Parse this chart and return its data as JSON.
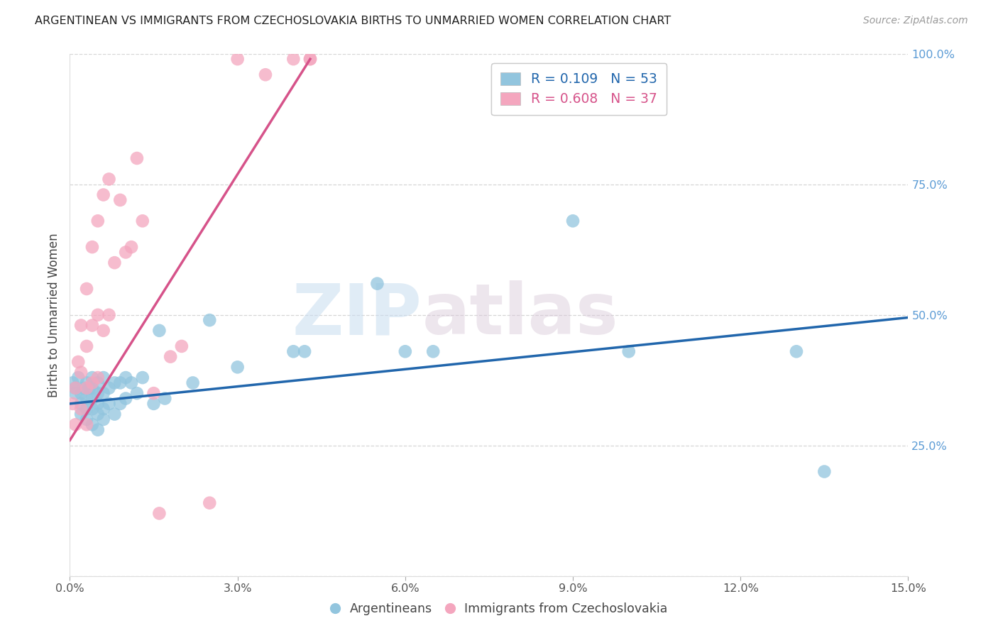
{
  "title": "ARGENTINEAN VS IMMIGRANTS FROM CZECHOSLOVAKIA BIRTHS TO UNMARRIED WOMEN CORRELATION CHART",
  "source": "Source: ZipAtlas.com",
  "ylabel": "Births to Unmarried Women",
  "legend_r_blue": "R = 0.109",
  "legend_n_blue": "N = 53",
  "legend_r_pink": "R = 0.608",
  "legend_n_pink": "N = 37",
  "legend_label_blue": "Argentineans",
  "legend_label_pink": "Immigrants from Czechoslovakia",
  "blue_scatter_color": "#92C5DE",
  "pink_scatter_color": "#F4A6BE",
  "blue_line_color": "#2166AC",
  "pink_line_color": "#D6538A",
  "xlim": [
    0.0,
    0.15
  ],
  "ylim": [
    0.0,
    1.0
  ],
  "xtick_vals": [
    0.0,
    0.03,
    0.06,
    0.09,
    0.12,
    0.15
  ],
  "xtick_labels": [
    "0.0%",
    "3.0%",
    "6.0%",
    "9.0%",
    "12.0%",
    "15.0%"
  ],
  "ytick_vals": [
    0.0,
    0.25,
    0.5,
    0.75,
    1.0
  ],
  "ytick_labels": [
    "",
    "25.0%",
    "50.0%",
    "75.0%",
    "100.0%"
  ],
  "watermark_zip": "ZIP",
  "watermark_atlas": "atlas",
  "blue_x": [
    0.0005,
    0.001,
    0.001,
    0.0015,
    0.002,
    0.002,
    0.002,
    0.0025,
    0.003,
    0.003,
    0.003,
    0.003,
    0.0035,
    0.004,
    0.004,
    0.004,
    0.004,
    0.004,
    0.005,
    0.005,
    0.005,
    0.005,
    0.005,
    0.006,
    0.006,
    0.006,
    0.006,
    0.007,
    0.007,
    0.008,
    0.008,
    0.009,
    0.009,
    0.01,
    0.01,
    0.011,
    0.012,
    0.013,
    0.015,
    0.016,
    0.017,
    0.022,
    0.025,
    0.03,
    0.04,
    0.042,
    0.055,
    0.06,
    0.065,
    0.09,
    0.1,
    0.13,
    0.135
  ],
  "blue_y": [
    0.37,
    0.36,
    0.35,
    0.38,
    0.35,
    0.33,
    0.31,
    0.36,
    0.37,
    0.34,
    0.32,
    0.3,
    0.36,
    0.38,
    0.36,
    0.34,
    0.32,
    0.29,
    0.37,
    0.35,
    0.33,
    0.31,
    0.28,
    0.38,
    0.35,
    0.32,
    0.3,
    0.36,
    0.33,
    0.37,
    0.31,
    0.37,
    0.33,
    0.38,
    0.34,
    0.37,
    0.35,
    0.38,
    0.33,
    0.47,
    0.34,
    0.37,
    0.49,
    0.4,
    0.43,
    0.43,
    0.56,
    0.43,
    0.43,
    0.68,
    0.43,
    0.43,
    0.2
  ],
  "pink_x": [
    0.0005,
    0.001,
    0.001,
    0.0015,
    0.002,
    0.002,
    0.002,
    0.003,
    0.003,
    0.003,
    0.003,
    0.004,
    0.004,
    0.004,
    0.005,
    0.005,
    0.005,
    0.006,
    0.006,
    0.007,
    0.007,
    0.008,
    0.009,
    0.01,
    0.011,
    0.012,
    0.013,
    0.015,
    0.016,
    0.018,
    0.02,
    0.025,
    0.03,
    0.035,
    0.04,
    0.043,
    0.043
  ],
  "pink_y": [
    0.33,
    0.36,
    0.29,
    0.41,
    0.48,
    0.39,
    0.32,
    0.55,
    0.44,
    0.36,
    0.29,
    0.63,
    0.48,
    0.37,
    0.68,
    0.5,
    0.38,
    0.73,
    0.47,
    0.76,
    0.5,
    0.6,
    0.72,
    0.62,
    0.63,
    0.8,
    0.68,
    0.35,
    0.12,
    0.42,
    0.44,
    0.14,
    0.99,
    0.96,
    0.99,
    0.99,
    0.99
  ],
  "blue_trend_x": [
    0.0,
    0.15
  ],
  "blue_trend_y": [
    0.33,
    0.495
  ],
  "pink_trend_x": [
    0.0,
    0.043
  ],
  "pink_trend_y": [
    0.26,
    0.99
  ]
}
